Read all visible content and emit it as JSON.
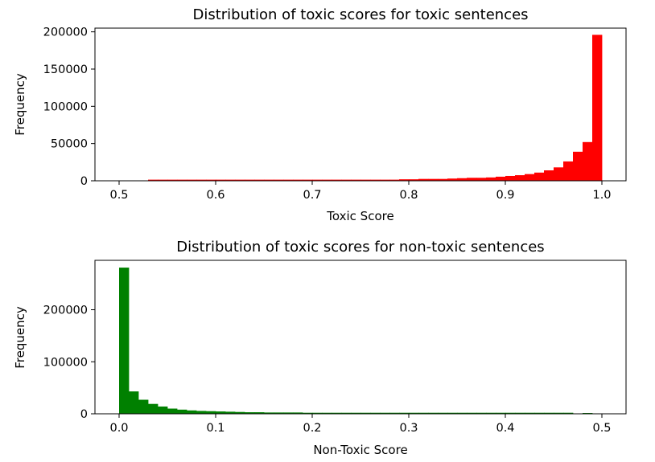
{
  "chart_data": [
    {
      "type": "bar",
      "title": "Distribution of toxic scores for toxic sentences",
      "xlabel": "Toxic Score",
      "ylabel": "Frequency",
      "xlim": [
        0.475,
        1.025
      ],
      "ylim": [
        0,
        205000
      ],
      "x_ticks": [
        "0.5",
        "0.6",
        "0.7",
        "0.8",
        "0.9",
        "1.0"
      ],
      "y_ticks": [
        "0",
        "50000",
        "100000",
        "150000",
        "200000"
      ],
      "bar_color": "#ff0000",
      "bin_start": 0.5,
      "bin_width": 0.01,
      "values": [
        0,
        0,
        0,
        1500,
        1500,
        1500,
        1500,
        1500,
        1500,
        1500,
        1500,
        1500,
        1500,
        1500,
        1500,
        1500,
        1500,
        1500,
        1500,
        1500,
        1500,
        1500,
        1500,
        1500,
        1500,
        1500,
        1500,
        1500,
        1500,
        2000,
        2000,
        2500,
        2500,
        2500,
        3000,
        3500,
        4000,
        4000,
        4500,
        5500,
        6500,
        7500,
        9000,
        11000,
        14000,
        18000,
        26000,
        39000,
        52000,
        196000
      ]
    },
    {
      "type": "bar",
      "title": "Distribution of toxic scores for non-toxic sentences",
      "xlabel": "Non-Toxic Score",
      "ylabel": "Frequency",
      "xlim": [
        -0.025,
        0.525
      ],
      "ylim": [
        0,
        295000
      ],
      "x_ticks": [
        "0.0",
        "0.1",
        "0.2",
        "0.3",
        "0.4",
        "0.5"
      ],
      "y_ticks": [
        "0",
        "100000",
        "200000"
      ],
      "bar_color": "#008000",
      "bin_start": 0,
      "bin_width": 0.01,
      "values": [
        281000,
        43000,
        27000,
        19000,
        14000,
        10000,
        8000,
        6500,
        5500,
        5000,
        4500,
        4000,
        3500,
        3000,
        3000,
        2500,
        2500,
        2500,
        2500,
        2000,
        2000,
        2000,
        2000,
        2000,
        2000,
        2000,
        2000,
        2000,
        2000,
        2000,
        2000,
        2000,
        2000,
        2000,
        2000,
        2000,
        2000,
        2000,
        2000,
        2000,
        2000,
        2000,
        2000,
        2000,
        2000,
        2000,
        2000,
        0,
        1500,
        0
      ]
    }
  ]
}
